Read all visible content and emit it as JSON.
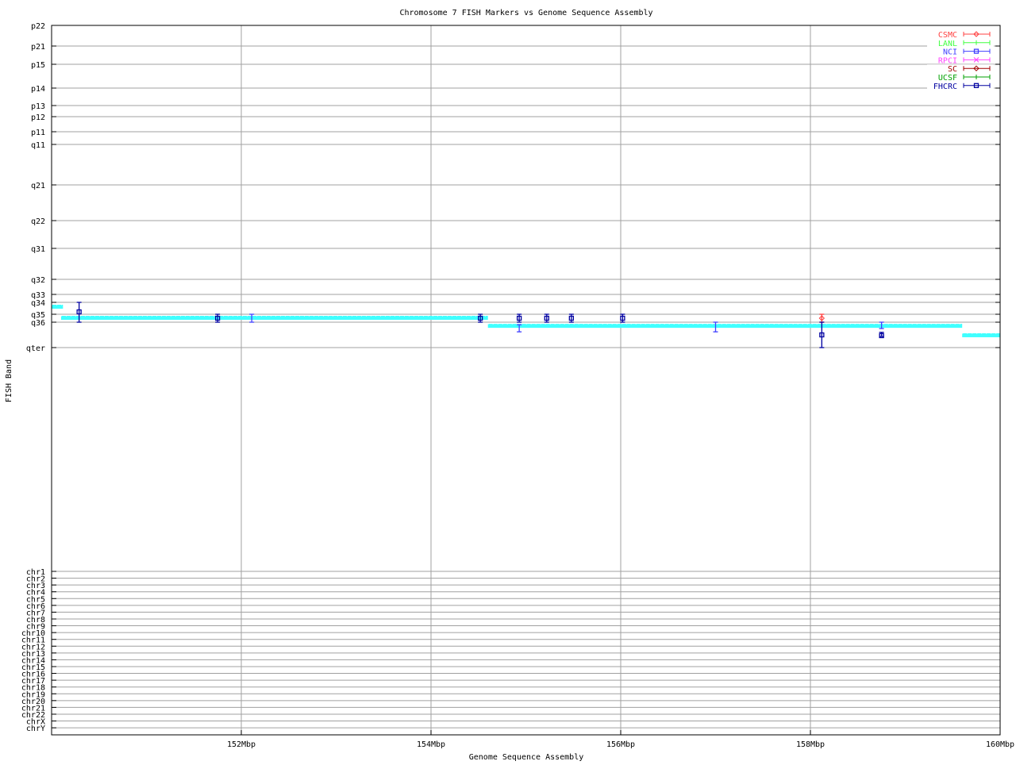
{
  "chart_data": {
    "type": "scatter",
    "title": "Chromosome 7 FISH Markers vs Genome Sequence Assembly",
    "xlabel": "Genome Sequence Assembly",
    "ylabel": "FISH Band",
    "xlim": [
      150,
      160
    ],
    "x_ticks": [
      {
        "value": 152,
        "label": "152Mbp"
      },
      {
        "value": 154,
        "label": "154Mbp"
      },
      {
        "value": 156,
        "label": "156Mbp"
      },
      {
        "value": 158,
        "label": "158Mbp"
      },
      {
        "value": 160,
        "label": "160Mbp"
      }
    ],
    "y_bands": [
      "p22",
      "p21",
      "p15",
      "p14",
      "p13",
      "p12",
      "p11",
      "q11",
      "q21",
      "q22",
      "q31",
      "q32",
      "q33",
      "q34",
      "q35",
      "q36",
      "qter"
    ],
    "y_chromosomes": [
      "chr1",
      "chr2",
      "chr3",
      "chr4",
      "chr5",
      "chr6",
      "chr7",
      "chr8",
      "chr9",
      "chr10",
      "chr11",
      "chr12",
      "chr13",
      "chr14",
      "chr15",
      "chr16",
      "chr17",
      "chr18",
      "chr19",
      "chr20",
      "chr21",
      "chr22",
      "chrX",
      "chrY"
    ],
    "grid": true,
    "legend_position": "top-right",
    "legend": [
      {
        "name": "CSMC",
        "color": "#ff4040",
        "marker": "diamond"
      },
      {
        "name": "LANL",
        "color": "#40ff40",
        "marker": "plus"
      },
      {
        "name": "NCI",
        "color": "#4040ff",
        "marker": "square"
      },
      {
        "name": "RPCI",
        "color": "#ff40ff",
        "marker": "cross"
      },
      {
        "name": "SC",
        "color": "#a00000",
        "marker": "diamond"
      },
      {
        "name": "UCSF",
        "color": "#00a000",
        "marker": "plus"
      },
      {
        "name": "FHCRC",
        "color": "#0000a0",
        "marker": "square"
      }
    ],
    "assembly_color": "#40ffff",
    "assembly_segments_note_units": "y as fractional index into y_bands",
    "assembly_segments": [
      {
        "x0": 150.0,
        "x1": 150.12,
        "y": 13.4
      },
      {
        "x0": 150.1,
        "x1": 154.6,
        "y": 14.5
      },
      {
        "x0": 154.6,
        "x1": 159.6,
        "y": 15.16
      },
      {
        "x0": 159.6,
        "x1": 160.0,
        "y": 15.53
      }
    ],
    "points": [
      {
        "source": "FHCRC",
        "x": 150.29,
        "y": 13.8,
        "ylo": 13,
        "yhi": 15
      },
      {
        "source": "FHCRC",
        "x": 151.75,
        "y": 14.5,
        "ylo": 14,
        "yhi": 15
      },
      {
        "source": "NCI",
        "x": 152.11,
        "y": 14.5,
        "ylo": 14,
        "yhi": 15
      },
      {
        "source": "FHCRC",
        "x": 154.52,
        "y": 14.5,
        "ylo": 14,
        "yhi": 15
      },
      {
        "source": "FHCRC",
        "x": 154.93,
        "y": 14.5,
        "ylo": 14,
        "yhi": 15
      },
      {
        "source": "NCI",
        "x": 154.93,
        "y": 15.2,
        "ylo": 15.1,
        "yhi": 15.38
      },
      {
        "source": "FHCRC",
        "x": 155.22,
        "y": 14.5,
        "ylo": 14,
        "yhi": 15
      },
      {
        "source": "FHCRC",
        "x": 155.48,
        "y": 14.5,
        "ylo": 14,
        "yhi": 15
      },
      {
        "source": "FHCRC",
        "x": 156.02,
        "y": 14.5,
        "ylo": 14,
        "yhi": 15
      },
      {
        "source": "NCI",
        "x": 157.0,
        "y": 15.16,
        "ylo": 15,
        "yhi": 15.38
      },
      {
        "source": "CSMC",
        "x": 158.12,
        "y": 14.5,
        "ylo": 14,
        "yhi": 15
      },
      {
        "source": "FHCRC",
        "x": 158.12,
        "y": 15.5,
        "ylo": 15,
        "yhi": 16
      },
      {
        "source": "NCI",
        "x": 158.75,
        "y": 15.16,
        "ylo": 15,
        "yhi": 15.25
      },
      {
        "source": "FHCRC",
        "x": 158.75,
        "y": 15.53,
        "ylo": 15.4,
        "yhi": 15.56
      }
    ]
  }
}
